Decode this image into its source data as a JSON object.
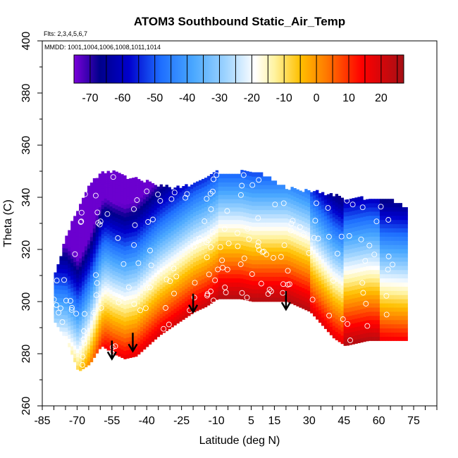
{
  "chart_data": {
    "type": "heatmap",
    "title": "ATOM3 Southbound Static_Air_Temp",
    "flights_label": "Flts: 2,3,4,5,6,7",
    "mmdd_label": "MMDD: 1001,1004,1006,1008,1011,1014",
    "xlabel": "Latitude (deg N)",
    "ylabel": "Theta (C)",
    "xlim": [
      -85,
      85
    ],
    "ylim": [
      260,
      400
    ],
    "x_ticks": [
      -85,
      -70,
      -55,
      -40,
      -25,
      -10,
      5,
      15,
      30,
      45,
      60,
      75
    ],
    "y_ticks": [
      260,
      280,
      300,
      320,
      340,
      360,
      380,
      400
    ],
    "colorbar": {
      "range": [
        -75,
        27
      ],
      "ticks": [
        -70,
        -60,
        -50,
        -40,
        -30,
        -20,
        -10,
        0,
        10,
        20
      ],
      "colors": [
        "#7a00d9",
        "#00008b",
        "#0000cd",
        "#1e6fff",
        "#4aa8ff",
        "#9fd4ff",
        "#ffffff",
        "#fff3a0",
        "#ffc000",
        "#ff7a00",
        "#ff0000",
        "#a50f15"
      ],
      "color_stops": [
        -75,
        -67,
        -58,
        -48,
        -38,
        -28,
        -19,
        -13,
        -5,
        3,
        14,
        27
      ]
    },
    "coverage": {
      "lat": [
        -80,
        -75,
        -70,
        -65,
        -60,
        -55,
        -50,
        -45,
        -40,
        -35,
        -30,
        -25,
        -20,
        -15,
        -10,
        -5,
        0,
        5,
        10,
        15,
        20,
        25,
        30,
        35,
        40,
        45,
        50,
        55,
        60,
        65,
        70
      ],
      "theta_bottom": [
        292,
        285,
        273,
        276,
        283,
        280,
        278,
        279,
        283,
        287,
        290,
        293,
        296,
        298,
        301,
        301,
        301,
        300,
        300,
        300,
        300,
        298,
        296,
        291,
        286,
        283,
        284,
        285,
        285,
        285,
        285
      ],
      "theta_top": [
        310,
        325,
        335,
        345,
        349,
        349,
        347,
        347,
        345,
        344,
        343,
        343,
        345,
        347,
        349,
        349,
        349,
        349,
        348,
        345,
        343,
        342,
        342,
        341,
        340,
        339,
        339,
        339,
        338,
        338,
        336
      ]
    },
    "arrows_lat": [
      -55,
      -46,
      -20,
      20
    ],
    "arrows_theta_tip": [
      278,
      281,
      296,
      297
    ]
  }
}
